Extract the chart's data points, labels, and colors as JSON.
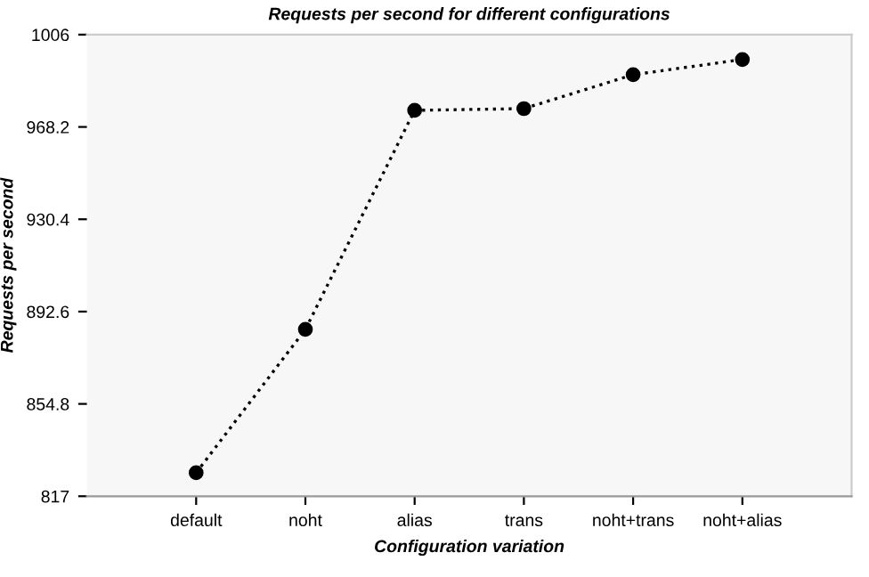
{
  "chart_data": {
    "type": "line",
    "title": "Requests per second for different configurations",
    "xlabel": "Configuration variation",
    "ylabel": "Requests per second",
    "categories": [
      "default",
      "noht",
      "alias",
      "trans",
      "noht+trans",
      "noht+alias"
    ],
    "series": [
      {
        "color": "#000000",
        "values": [
          826.6,
          885.3,
          975.0,
          975.7,
          989.6,
          995.8
        ]
      }
    ],
    "ylim": [
      817,
      1006
    ],
    "yticks": [
      817,
      854.8,
      892.6,
      930.4,
      968.2,
      1006
    ],
    "grid": false,
    "legend": false,
    "marker": "circle",
    "line_style": "dotted"
  }
}
